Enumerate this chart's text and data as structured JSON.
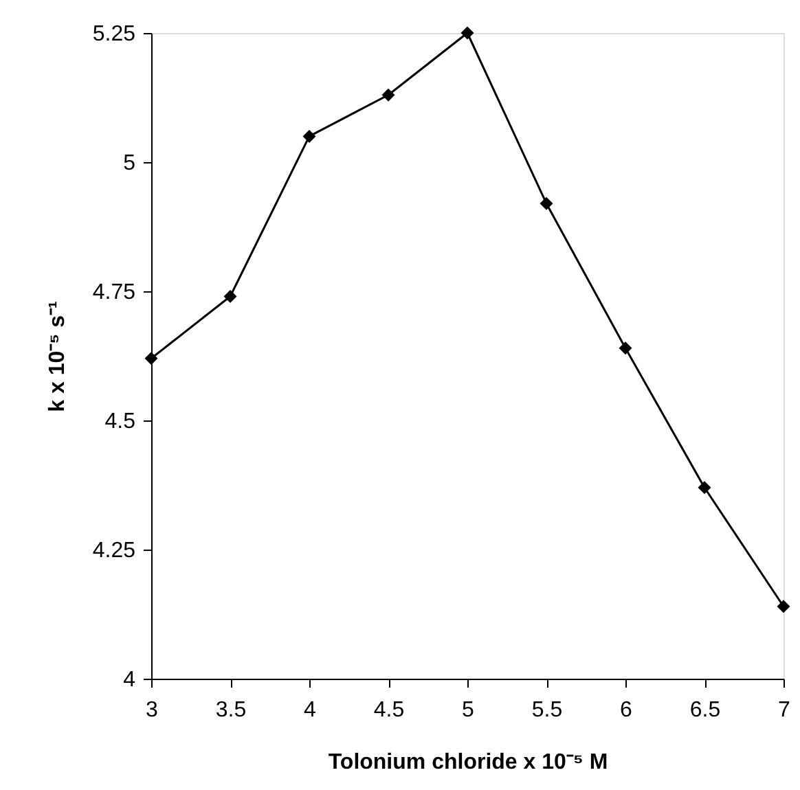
{
  "chart_data": {
    "type": "line",
    "xlabel": "Tolonium chloride x 10⁻⁵ M",
    "ylabel": "k x 10⁻⁵ s⁻¹",
    "x": [
      3,
      3.5,
      4,
      4.5,
      5,
      5.5,
      6,
      6.5,
      7
    ],
    "series": [
      {
        "color": "#000000",
        "values": [
          4.62,
          4.74,
          5.05,
          5.13,
          5.25,
          4.92,
          4.64,
          4.37,
          4.14
        ]
      }
    ],
    "xlim": [
      3,
      7
    ],
    "xticks": [
      3,
      3.5,
      4,
      4.5,
      5,
      5.5,
      6,
      6.5,
      7
    ],
    "ylim": [
      4,
      5.25
    ],
    "yticks": [
      4,
      4.25,
      4.5,
      4.75,
      5,
      5.25
    ],
    "grid": false,
    "marker": "diamond",
    "line_style": "solid"
  }
}
